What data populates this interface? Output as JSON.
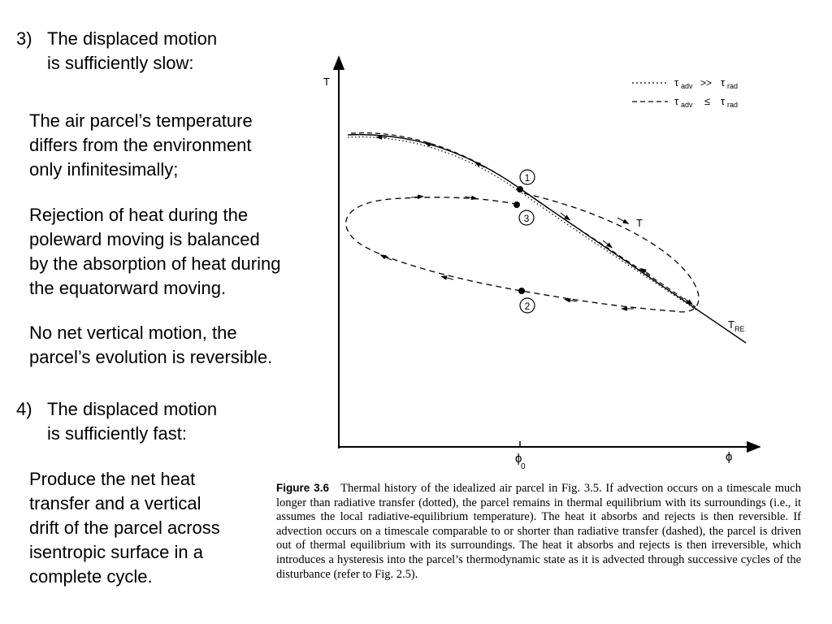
{
  "item3": {
    "number": "3)",
    "heading_line1": "The displaced motion",
    "heading_line2": "is sufficiently slow:",
    "p1_lines": [
      "The air parcel’s temperature",
      "differs from the environment",
      "only infinitesimally;"
    ],
    "p2_lines": [
      "Rejection of heat during the",
      "poleward moving is balanced",
      "by the absorption of heat during",
      "the equatorward moving."
    ],
    "p3_lines": [
      "No net vertical motion, the",
      "parcel’s evolution is reversible."
    ]
  },
  "item4": {
    "number": "4)",
    "heading_line1": "The displaced motion",
    "heading_line2": "is sufficiently fast:",
    "p1_lines": [
      "Produce the net heat",
      "transfer and a vertical",
      "drift of the parcel across",
      "isentropic surface in a",
      "complete cycle."
    ]
  },
  "figure": {
    "y_axis_label": "T",
    "x_axis_label": "ϕ",
    "x_tick_label": "ϕ",
    "x_tick_sub": "0",
    "curve_label_T": "T",
    "curve_label_TRE": "T",
    "curve_label_TRE_sub": "RE",
    "point_labels": [
      "1",
      "3",
      "2"
    ],
    "legend": [
      {
        "style": "dotted",
        "tau": "τ",
        "sub1": "adv",
        "relation": ">>",
        "tau2": "τ",
        "sub2": "rad"
      },
      {
        "style": "dashed",
        "tau": "τ",
        "sub1": "adv",
        "relation": "≤",
        "tau2": "τ",
        "sub2": "rad"
      }
    ]
  },
  "caption": {
    "label": "Figure 3.6",
    "lines": [
      "Thermal history of the idealized air parcel in Fig. 3.5. If advection occurs on a",
      "timescale much longer than radiative transfer (dotted), the parcel remains in thermal equilibrium",
      "with its surroundings (i.e., it assumes the local radiative-equilibrium temperature). The heat",
      "it absorbs and rejects is then reversible. If advection occurs on a timescale comparable to or",
      "shorter than radiative transfer (dashed), the parcel is driven out of thermal equilibrium with its",
      "surroundings. The heat it absorbs and rejects is then irreversible, which introduces a hysteresis",
      "into the parcel’s thermodynamic state as it is advected through successive cycles of the disturbance",
      "(refer to Fig. 2.5)."
    ]
  }
}
